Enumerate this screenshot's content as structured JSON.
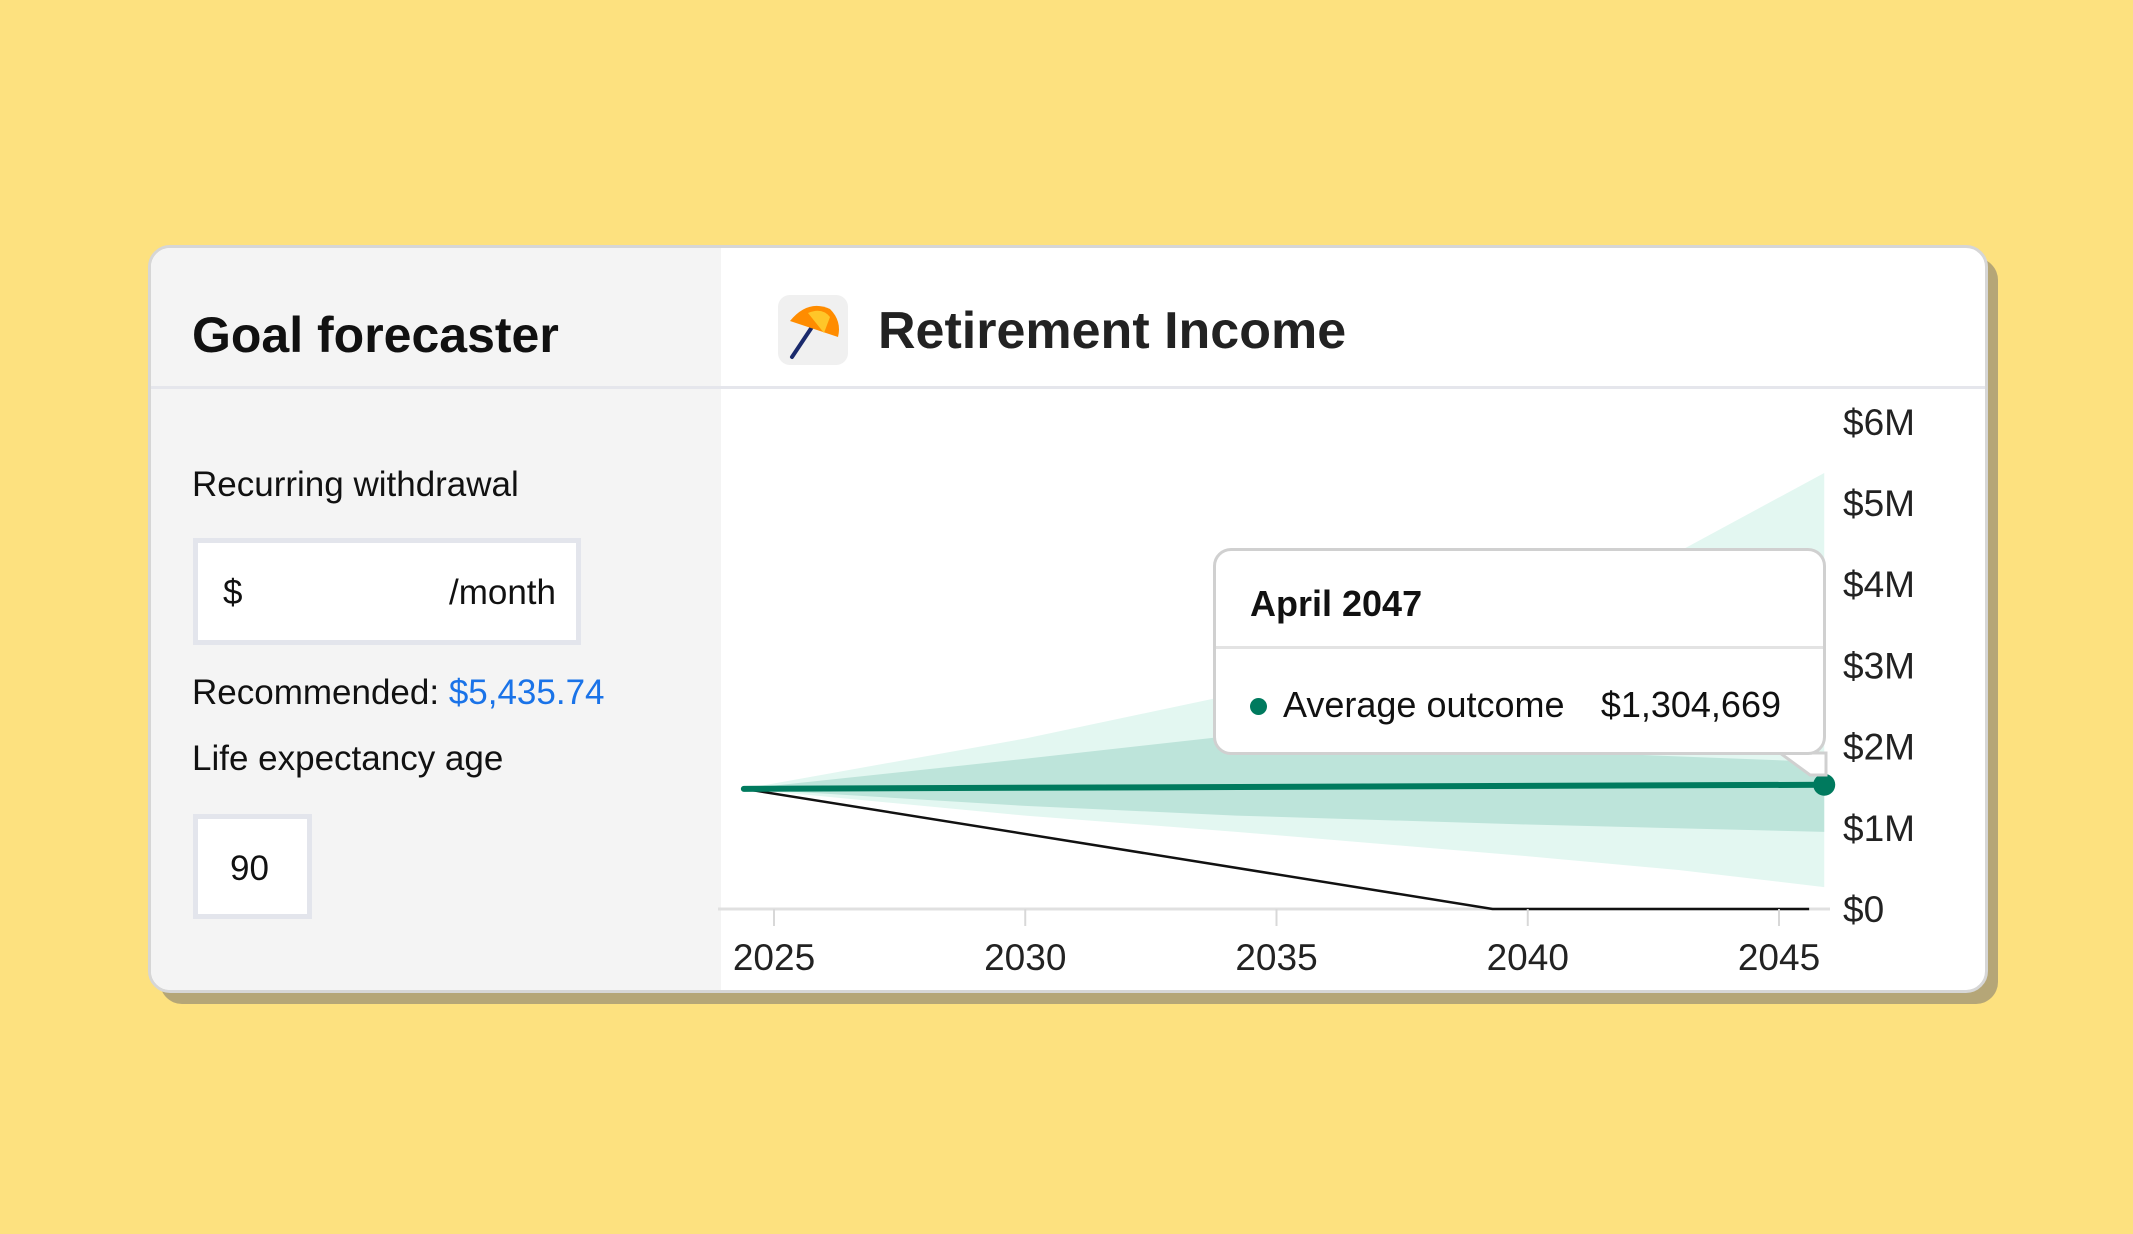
{
  "left_panel": {
    "title": "Goal forecaster",
    "withdrawal_label": "Recurring withdrawal",
    "withdrawal_prefix": "$",
    "withdrawal_value": "",
    "withdrawal_suffix": "/month",
    "recommended_label": "Recommended:",
    "recommended_value": "$5,435.74",
    "life_expectancy_label": "Life expectancy age",
    "life_expectancy_value": "90"
  },
  "chart_panel": {
    "title": "Retirement Income",
    "icon": "umbrella-icon"
  },
  "tooltip": {
    "date": "April 2047",
    "series_label": "Average outcome",
    "value": "$1,304,669"
  },
  "colors": {
    "average_line": "#007a5e",
    "inner_band": "#bde4da",
    "outer_band": "#e3f7f1",
    "link": "#1a73e8",
    "background": "#fde17f"
  },
  "chart_data": {
    "type": "area",
    "x_ticks": [
      2025,
      2030,
      2035,
      2040,
      2045
    ],
    "x_tick_labels": [
      "2025",
      "2030",
      "2035",
      "2040",
      "2045"
    ],
    "y_ticks": [
      0,
      1,
      2,
      3,
      4,
      5,
      6
    ],
    "y_tick_labels": [
      "$0",
      "$1M",
      "$2M",
      "$3M",
      "$4M",
      "$5M",
      "$6M"
    ],
    "xlim": [
      2024.4,
      2045.9
    ],
    "ylim": [
      0,
      6
    ],
    "y_unit": "millions USD",
    "grid": false,
    "series": [
      {
        "name": "Average outcome",
        "kind": "line",
        "x": [
          2024.4,
          2045.9
        ],
        "y": [
          1.48,
          1.53
        ]
      },
      {
        "kind": "band-outer",
        "x": [
          2024.4,
          2030,
          2034.2,
          2040,
          2043,
          2045.9
        ],
        "upper": [
          1.48,
          2.1,
          2.65,
          3.6,
          4.4,
          5.37
        ],
        "lower": [
          1.48,
          1.15,
          0.95,
          0.65,
          0.48,
          0.27
        ]
      },
      {
        "kind": "band-inner",
        "x": [
          2024.4,
          2030,
          2034.2,
          2040,
          2045.9
        ],
        "upper": [
          1.48,
          1.85,
          2.14,
          1.95,
          1.81
        ],
        "lower": [
          1.48,
          1.27,
          1.15,
          1.04,
          0.95
        ]
      },
      {
        "kind": "depletion-line",
        "x": [
          2024.4,
          2039.3,
          2045.6
        ],
        "y": [
          1.48,
          0,
          0
        ]
      }
    ]
  }
}
